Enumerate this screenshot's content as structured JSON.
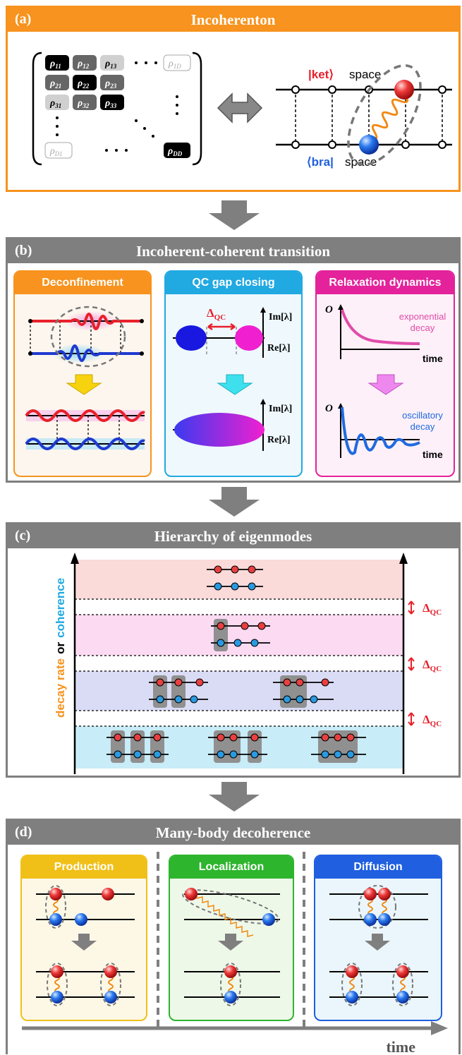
{
  "colors": {
    "orange": "#f7931e",
    "gray": "#7f7f7f",
    "red": "#e8202a",
    "blue": "#1f5fe0",
    "magenta": "#e4229b",
    "cyan": "#21a9e1",
    "green": "#2db52d",
    "yellow": "#f0c018"
  },
  "panel_a": {
    "label": "(a)",
    "title": "Incoherenton",
    "matrix": {
      "r11": "ρ",
      "r11s": "11",
      "r12": "ρ",
      "r12s": "12",
      "r13": "ρ",
      "r13s": "13",
      "r1D": "ρ",
      "r1Ds": "1D",
      "r21": "ρ",
      "r21s": "21",
      "r22": "ρ",
      "r22s": "22",
      "r23": "ρ",
      "r23s": "23",
      "r31": "ρ",
      "r31s": "31",
      "r32": "ρ",
      "r32s": "32",
      "r33": "ρ",
      "r33s": "33",
      "rD1": "ρ",
      "rD1s": "D1",
      "rDD": "ρ",
      "rDDs": "DD"
    },
    "ket": "|ket⟩",
    "bra": "⟨bra|",
    "space": "space"
  },
  "panel_b": {
    "label": "(b)",
    "title": "Incoherent-coherent transition",
    "deconfinement": "Deconfinement",
    "qc_gap": "QC gap closing",
    "relaxation": "Relaxation dynamics",
    "delta": "Δ",
    "delta_sub": "QC",
    "im": "Im[λ]",
    "re": "Re[λ]",
    "o_axis": "O",
    "time": "time",
    "exp1": "exponential",
    "exp2": "decay",
    "osc1": "oscillatory",
    "osc2": "decay"
  },
  "panel_c": {
    "label": "(c)",
    "title": "Hierarchy of eigenmodes",
    "axis_w1": "decay rate",
    "axis_w2": "or",
    "axis_w3": "coherence",
    "delta": "Δ",
    "delta_sub": "QC"
  },
  "panel_d": {
    "label": "(d)",
    "title": "Many-body decoherence",
    "production": "Production",
    "localization": "Localization",
    "diffusion": "Diffusion",
    "time": "time"
  }
}
